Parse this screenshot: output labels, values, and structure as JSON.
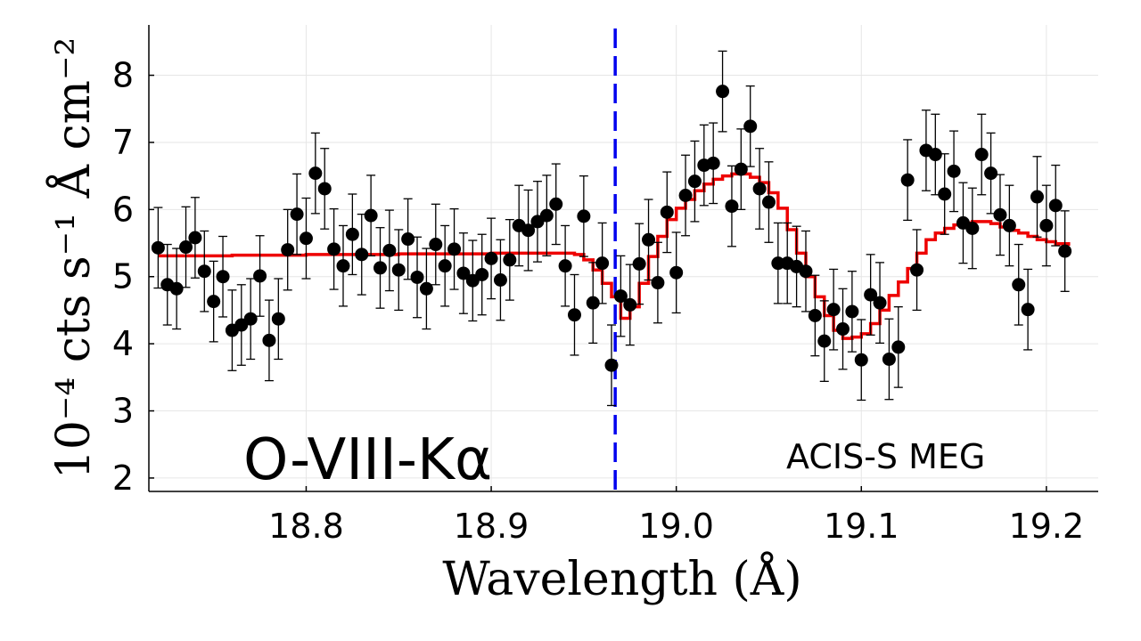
{
  "chart_data": {
    "type": "scatter",
    "title": "",
    "xlabel": "Wavelength (Å)",
    "ylabel": "10⁻⁴ cts s⁻¹ Å cm⁻²",
    "xlim": [
      18.715,
      19.228
    ],
    "ylim": [
      1.8,
      8.75
    ],
    "xticks": [
      18.8,
      18.9,
      19.0,
      19.1,
      19.2
    ],
    "xtick_labels": [
      "18.8",
      "18.9",
      "19.0",
      "19.1",
      "19.2"
    ],
    "yticks": [
      2,
      3,
      4,
      5,
      6,
      7,
      8
    ],
    "ytick_labels": [
      "2",
      "3",
      "4",
      "5",
      "6",
      "7",
      "8"
    ],
    "grid": true,
    "reference_line": {
      "x": 18.967,
      "style": "dashed",
      "color": "#0000ee"
    },
    "annotations": {
      "line_name": "O-VIII-Kα",
      "instrument": "ACIS-S MEG"
    },
    "colors": {
      "data": "#000000",
      "model": "#ee0000",
      "reference": "#0000ee"
    },
    "series": [
      {
        "name": "data",
        "kind": "points_with_errorbars",
        "error": 0.6,
        "x": [
          18.72,
          18.725,
          18.73,
          18.735,
          18.74,
          18.745,
          18.75,
          18.755,
          18.76,
          18.765,
          18.77,
          18.775,
          18.78,
          18.785,
          18.79,
          18.795,
          18.8,
          18.805,
          18.81,
          18.815,
          18.82,
          18.825,
          18.83,
          18.835,
          18.84,
          18.845,
          18.85,
          18.855,
          18.86,
          18.865,
          18.87,
          18.875,
          18.88,
          18.885,
          18.89,
          18.895,
          18.9,
          18.905,
          18.91,
          18.915,
          18.92,
          18.925,
          18.93,
          18.935,
          18.94,
          18.945,
          18.95,
          18.955,
          18.96,
          18.965,
          18.97,
          18.975,
          18.98,
          18.985,
          18.99,
          18.995,
          19.0,
          19.005,
          19.01,
          19.015,
          19.02,
          19.025,
          19.03,
          19.035,
          19.04,
          19.045,
          19.05,
          19.055,
          19.06,
          19.065,
          19.07,
          19.075,
          19.08,
          19.085,
          19.09,
          19.095,
          19.1,
          19.105,
          19.11,
          19.115,
          19.12,
          19.125,
          19.13,
          19.135,
          19.14,
          19.145,
          19.15,
          19.155,
          19.16,
          19.165,
          19.17,
          19.175,
          19.18,
          19.185,
          19.19,
          19.195,
          19.2,
          19.205,
          19.21
        ],
        "y": [
          5.43,
          4.88,
          4.82,
          5.44,
          5.58,
          5.08,
          4.63,
          5.0,
          4.2,
          4.28,
          4.37,
          5.01,
          4.05,
          4.37,
          5.4,
          5.93,
          5.57,
          6.54,
          6.31,
          5.41,
          5.16,
          5.63,
          5.33,
          5.91,
          5.13,
          5.39,
          5.1,
          5.56,
          4.99,
          4.82,
          5.48,
          5.16,
          5.41,
          5.05,
          4.94,
          5.03,
          5.27,
          4.95,
          5.25,
          5.76,
          5.69,
          5.82,
          5.91,
          6.08,
          5.16,
          4.43,
          5.9,
          4.61,
          5.2,
          3.68,
          4.71,
          4.58,
          5.19,
          5.55,
          4.91,
          5.96,
          5.06,
          6.21,
          6.42,
          6.66,
          6.69,
          7.76,
          6.05,
          6.6,
          7.24,
          6.31,
          6.11,
          5.2,
          5.2,
          5.15,
          5.08,
          4.42,
          4.04,
          4.51,
          4.22,
          4.48,
          3.76,
          4.73,
          4.61,
          3.77,
          3.95,
          6.44,
          5.1,
          6.88,
          6.82,
          6.23,
          6.57,
          5.8,
          5.72,
          6.82,
          6.54,
          5.92,
          5.76,
          4.88,
          4.51,
          6.19,
          5.76,
          6.06,
          5.38
        ]
      },
      {
        "name": "model",
        "kind": "step",
        "x": [
          18.72,
          18.73,
          18.74,
          18.75,
          18.76,
          18.77,
          18.78,
          18.79,
          18.8,
          18.81,
          18.82,
          18.83,
          18.84,
          18.85,
          18.86,
          18.87,
          18.88,
          18.89,
          18.9,
          18.91,
          18.92,
          18.93,
          18.94,
          18.945,
          18.95,
          18.955,
          18.96,
          18.965,
          18.97,
          18.975,
          18.98,
          18.985,
          18.99,
          18.995,
          19.0,
          19.005,
          19.01,
          19.015,
          19.02,
          19.025,
          19.03,
          19.035,
          19.04,
          19.045,
          19.05,
          19.055,
          19.06,
          19.065,
          19.07,
          19.075,
          19.08,
          19.085,
          19.09,
          19.095,
          19.1,
          19.105,
          19.11,
          19.115,
          19.12,
          19.125,
          19.13,
          19.135,
          19.14,
          19.145,
          19.15,
          19.155,
          19.16,
          19.165,
          19.17,
          19.175,
          19.18,
          19.185,
          19.19,
          19.195,
          19.2,
          19.205,
          19.212
        ],
        "y": [
          5.31,
          5.31,
          5.31,
          5.31,
          5.32,
          5.32,
          5.32,
          5.32,
          5.33,
          5.33,
          5.33,
          5.33,
          5.33,
          5.34,
          5.34,
          5.34,
          5.34,
          5.34,
          5.35,
          5.35,
          5.35,
          5.35,
          5.35,
          5.33,
          5.25,
          5.1,
          4.9,
          4.7,
          4.38,
          4.55,
          4.9,
          5.3,
          5.6,
          5.85,
          6.02,
          6.15,
          6.28,
          6.38,
          6.45,
          6.5,
          6.53,
          6.53,
          6.48,
          6.4,
          6.25,
          6.02,
          5.7,
          5.35,
          5.0,
          4.7,
          4.42,
          4.2,
          4.08,
          4.1,
          4.15,
          4.3,
          4.5,
          4.72,
          4.92,
          5.12,
          5.35,
          5.55,
          5.65,
          5.72,
          5.77,
          5.8,
          5.82,
          5.82,
          5.79,
          5.74,
          5.69,
          5.65,
          5.6,
          5.55,
          5.52,
          5.49,
          5.46
        ]
      }
    ]
  }
}
